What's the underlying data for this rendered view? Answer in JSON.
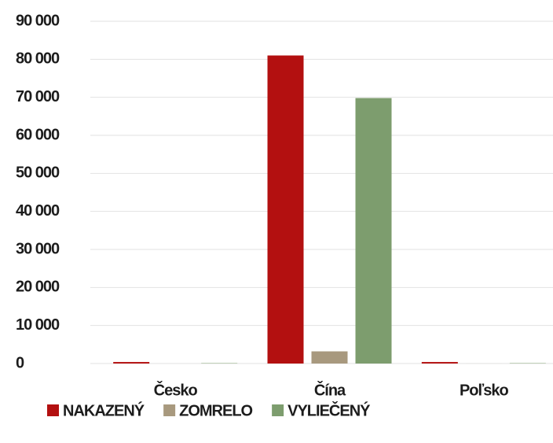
{
  "chart_data": {
    "type": "bar",
    "categories": [
      "Česko",
      "Čína",
      "Poľsko"
    ],
    "series": [
      {
        "name": "NAKAZENÝ",
        "color": "#b31010",
        "values": [
          400,
          81000,
          400
        ]
      },
      {
        "name": "ZOMRELO",
        "color": "#a8997e",
        "values": [
          0,
          3200,
          5
        ]
      },
      {
        "name": "VYLIEČENÝ",
        "color": "#7d9d6e",
        "values": [
          100,
          69800,
          100
        ]
      }
    ],
    "ylim": [
      0,
      90000
    ],
    "yticks": [
      0,
      {
        "value": 10000,
        "label": "10 000"
      },
      {
        "value": 20000,
        "label": "20 000"
      },
      {
        "value": 30000,
        "label": "30 000"
      },
      {
        "value": 40000,
        "label": "40 000"
      },
      {
        "value": 50000,
        "label": "50 000"
      },
      {
        "value": 60000,
        "label": "60 000"
      },
      {
        "value": 70000,
        "label": "70 000"
      },
      {
        "value": 80000,
        "label": "80 000"
      },
      {
        "value": 90000,
        "label": "90 000"
      }
    ],
    "grid": true,
    "legend": "bottom"
  }
}
